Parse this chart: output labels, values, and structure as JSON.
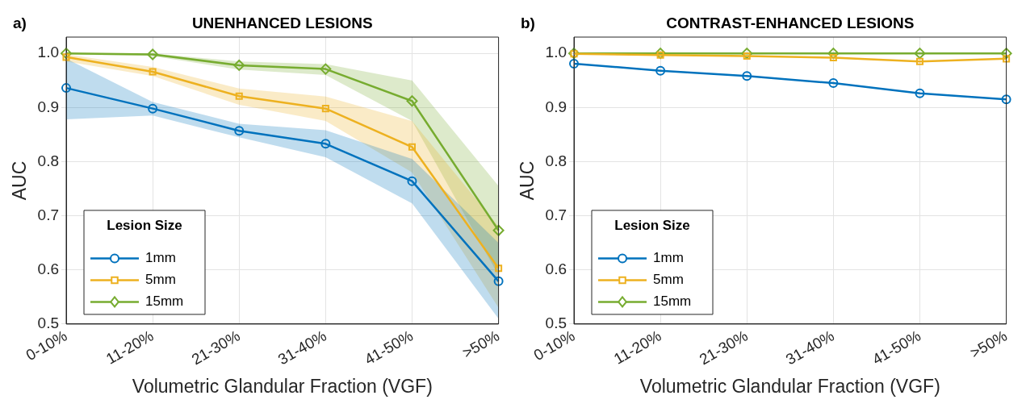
{
  "chart_data": [
    {
      "type": "line",
      "title": "UNENHANCED LESIONS",
      "annotations": [
        "a)"
      ],
      "xlabel": "Volumetric Glandular Fraction (VGF)",
      "ylabel": "AUC",
      "legend_title": "Lesion Size",
      "legend": "bottom left",
      "grid": true,
      "categories": [
        "0-10%",
        "11-20%",
        "21-30%",
        "31-40%",
        "41-50%",
        ">50%"
      ],
      "ylim": [
        0.5,
        1.03
      ],
      "yticks": [
        0.5,
        0.6,
        0.7,
        0.8,
        0.9,
        {
          "value": 1,
          "label": "1.0"
        }
      ],
      "series": [
        {
          "name": "1mm",
          "color": "#0072bd",
          "marker": "circle",
          "values": [
            0.936,
            0.898,
            0.857,
            0.833,
            0.764,
            0.579
          ],
          "lower": [
            0.878,
            0.885,
            0.845,
            0.808,
            0.723,
            0.51
          ],
          "upper": [
            0.99,
            0.91,
            0.87,
            0.858,
            0.805,
            0.65
          ]
        },
        {
          "name": "5mm",
          "color": "#edb120",
          "marker": "square",
          "values": [
            0.993,
            0.966,
            0.921,
            0.898,
            0.827,
            0.603
          ],
          "lower": [
            0.985,
            0.958,
            0.905,
            0.875,
            0.78,
            0.53
          ],
          "upper": [
            0.998,
            0.975,
            0.935,
            0.92,
            0.875,
            0.68
          ]
        },
        {
          "name": "15mm",
          "color": "#77ac30",
          "marker": "diamond",
          "values": [
            1.0,
            0.998,
            0.978,
            0.971,
            0.912,
            0.673
          ],
          "lower": [
            0.998,
            0.995,
            0.97,
            0.96,
            0.875,
            0.59
          ],
          "upper": [
            1.0,
            1.0,
            0.985,
            0.98,
            0.95,
            0.755
          ]
        }
      ]
    },
    {
      "type": "line",
      "title": "CONTRAST-ENHANCED LESIONS",
      "annotations": [
        "b)"
      ],
      "xlabel": "Volumetric Glandular Fraction (VGF)",
      "ylabel": "AUC",
      "legend_title": "Lesion Size",
      "legend": "bottom left",
      "grid": true,
      "categories": [
        "0-10%",
        "11-20%",
        "21-30%",
        "31-40%",
        "41-50%",
        ">50%"
      ],
      "ylim": [
        0.5,
        1.03
      ],
      "yticks": [
        0.5,
        0.6,
        0.7,
        0.8,
        0.9,
        {
          "value": 1,
          "label": "1.0"
        }
      ],
      "series": [
        {
          "name": "1mm",
          "color": "#0072bd",
          "marker": "circle",
          "values": [
            0.981,
            0.968,
            0.958,
            0.945,
            0.926,
            0.915
          ]
        },
        {
          "name": "5mm",
          "color": "#edb120",
          "marker": "square",
          "values": [
            0.999,
            0.997,
            0.995,
            0.992,
            0.985,
            0.99
          ]
        },
        {
          "name": "15mm",
          "color": "#77ac30",
          "marker": "diamond",
          "values": [
            1.0,
            1.0,
            1.0,
            1.0,
            1.0,
            1.0
          ]
        }
      ]
    }
  ]
}
